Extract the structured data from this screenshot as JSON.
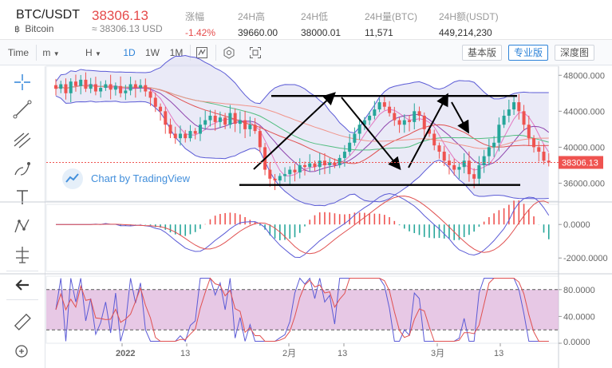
{
  "header": {
    "symbol": "BTC/USDT",
    "coin_name": "Bitcoin",
    "last_price": "38306.13",
    "approx_usd": "≈ 38306.13 USD",
    "stats": [
      {
        "label": "涨幅",
        "value": "-1.42%",
        "red": true
      },
      {
        "label": "24H高",
        "value": "39660.00"
      },
      {
        "label": "24H低",
        "value": "38000.01"
      },
      {
        "label": "24H量(BTC)",
        "value": "11,571"
      },
      {
        "label": "24H额(USDT)",
        "value": "449,214,230"
      }
    ]
  },
  "toolbar": {
    "time_label": "Time",
    "minute_label": "m",
    "hour_label": "H",
    "intervals": [
      "1D",
      "1W",
      "1M"
    ],
    "active_interval": "1D",
    "views": [
      "基本版",
      "专业版",
      "深度图"
    ],
    "active_view": "专业版"
  },
  "watermark": "Chart by TradingView",
  "chart_data": [
    {
      "type": "candlestick",
      "panel": "price",
      "last_price_label": "38306.13",
      "y_ticks": [
        "48000.000",
        "44000.000",
        "40000.000",
        "36000.000"
      ],
      "ylim": [
        34000,
        49000
      ],
      "x_ticks": [
        "2022",
        "13",
        "2月",
        "13",
        "3月",
        "13"
      ],
      "trend_lines": {
        "resistance": 45700,
        "support": 35800
      },
      "indicators": [
        "Bollinger Bands",
        "Moving Averages"
      ]
    },
    {
      "type": "histogram+line",
      "panel": "MACD",
      "y_ticks": [
        "0.0000",
        "-2000.0000"
      ],
      "ylim": [
        -2800,
        1200
      ]
    },
    {
      "type": "line",
      "panel": "Stochastic RSI",
      "y_ticks": [
        "80.0000",
        "40.0000",
        "0.0000"
      ],
      "ylim": [
        0,
        100
      ],
      "band": [
        20,
        80
      ]
    }
  ],
  "colors": {
    "up": "#26a69a",
    "down": "#ef5350",
    "accent": "#2e83d8",
    "band_fill": "#dcdcf2",
    "stoch_band": "#dfb6dc"
  }
}
